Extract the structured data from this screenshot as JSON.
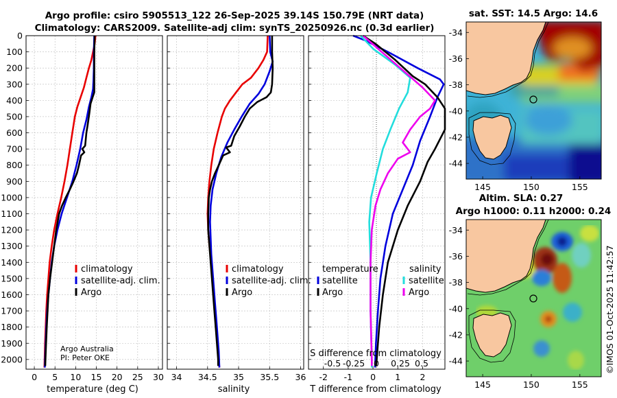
{
  "header": {
    "line1": "Argo profile: csiro 5905513_122 26-Sep-2025 39.14S 150.79E (NRT data)",
    "line2": "Climatology: CARS2009. Satellite-adj clim: synTS_20250926.nc (0.3d earlier)"
  },
  "colors": {
    "climatology": "#e80000",
    "satellite": "#0000dd",
    "argo": "#000000",
    "temp_diff": "#22dddd",
    "sal_diff": "#ee00ee"
  },
  "credit": {
    "line1": "Argo Australia",
    "line2": "PI: Peter OKE"
  },
  "footer": "©IMOS 01-Oct-2025 11:42:57",
  "chart_data": [
    {
      "type": "line",
      "name": "temperature-profile",
      "xlabel": "temperature (deg C)",
      "xlim": [
        -2,
        31
      ],
      "ylim": [
        2060,
        0
      ],
      "xticks": [
        0,
        5,
        10,
        15,
        20,
        25,
        30
      ],
      "yticks": [
        0,
        100,
        200,
        300,
        400,
        500,
        600,
        700,
        800,
        900,
        1000,
        1100,
        1200,
        1300,
        1400,
        1500,
        1600,
        1700,
        1800,
        1900,
        2000
      ],
      "legend": [
        "climatology",
        "satellite-adj. clim.",
        "Argo"
      ],
      "series": [
        {
          "name": "climatology",
          "color": "#e80000",
          "points": [
            [
              14.8,
              0
            ],
            [
              14.6,
              50
            ],
            [
              14.2,
              100
            ],
            [
              13.8,
              150
            ],
            [
              13.2,
              200
            ],
            [
              12.6,
              260
            ],
            [
              12,
              320
            ],
            [
              11.2,
              380
            ],
            [
              10.4,
              440
            ],
            [
              9.8,
              500
            ],
            [
              9.2,
              600
            ],
            [
              8.6,
              700
            ],
            [
              8,
              800
            ],
            [
              7.3,
              900
            ],
            [
              6.5,
              1000
            ],
            [
              5.6,
              1100
            ],
            [
              4.8,
              1200
            ],
            [
              4.2,
              1300
            ],
            [
              3.7,
              1400
            ],
            [
              3.4,
              1500
            ],
            [
              3.1,
              1600
            ],
            [
              2.9,
              1700
            ],
            [
              2.75,
              1800
            ],
            [
              2.6,
              1900
            ],
            [
              2.5,
              2000
            ],
            [
              2.45,
              2050
            ]
          ]
        },
        {
          "name": "satellite-adj. clim.",
          "color": "#0000dd",
          "points": [
            [
              14.5,
              0
            ],
            [
              14.4,
              100
            ],
            [
              14.4,
              200
            ],
            [
              14.3,
              280
            ],
            [
              14.2,
              330
            ],
            [
              13.8,
              380
            ],
            [
              13.2,
              440
            ],
            [
              12.6,
              520
            ],
            [
              11.8,
              600
            ],
            [
              11.1,
              700
            ],
            [
              10.2,
              800
            ],
            [
              9.2,
              900
            ],
            [
              7.9,
              1000
            ],
            [
              6.6,
              1100
            ],
            [
              5.6,
              1200
            ],
            [
              4.8,
              1300
            ],
            [
              4.2,
              1400
            ],
            [
              3.8,
              1500
            ],
            [
              3.4,
              1600
            ],
            [
              3.1,
              1700
            ],
            [
              2.9,
              1800
            ],
            [
              2.75,
              1900
            ],
            [
              2.6,
              2000
            ],
            [
              2.55,
              2050
            ]
          ]
        },
        {
          "name": "Argo",
          "color": "#000000",
          "points": [
            [
              14.6,
              0
            ],
            [
              14.5,
              100
            ],
            [
              14.5,
              200
            ],
            [
              14.5,
              300
            ],
            [
              14.5,
              350
            ],
            [
              14.1,
              380
            ],
            [
              13.6,
              420
            ],
            [
              13.3,
              480
            ],
            [
              12.9,
              550
            ],
            [
              12.6,
              600
            ],
            [
              12.3,
              680
            ],
            [
              11.6,
              700
            ],
            [
              12.1,
              720
            ],
            [
              11.3,
              740
            ],
            [
              10.8,
              800
            ],
            [
              10.3,
              850
            ],
            [
              9.5,
              900
            ],
            [
              8.6,
              950
            ],
            [
              7.6,
              1000
            ],
            [
              6.7,
              1050
            ],
            [
              6.0,
              1100
            ],
            [
              5.3,
              1200
            ],
            [
              4.8,
              1300
            ],
            [
              4.3,
              1400
            ],
            [
              3.8,
              1500
            ],
            [
              3.4,
              1600
            ],
            [
              3.2,
              1700
            ],
            [
              3.0,
              1800
            ],
            [
              2.85,
              1900
            ],
            [
              2.7,
              2000
            ],
            [
              2.65,
              2040
            ]
          ]
        }
      ]
    },
    {
      "type": "line",
      "name": "salinity-profile",
      "xlabel": "salinity",
      "xlim": [
        33.85,
        36.05
      ],
      "ylim": [
        2060,
        0
      ],
      "xticks": [
        34,
        34.5,
        35,
        35.5,
        36
      ],
      "legend": [
        "climatology",
        "satellite-adj. clim.",
        "Argo"
      ],
      "series": [
        {
          "name": "climatology",
          "color": "#e80000",
          "points": [
            [
              35.47,
              0
            ],
            [
              35.46,
              100
            ],
            [
              35.4,
              150
            ],
            [
              35.32,
              200
            ],
            [
              35.2,
              260
            ],
            [
              35.06,
              300
            ],
            [
              34.96,
              350
            ],
            [
              34.86,
              400
            ],
            [
              34.78,
              450
            ],
            [
              34.73,
              500
            ],
            [
              34.66,
              600
            ],
            [
              34.6,
              700
            ],
            [
              34.56,
              800
            ],
            [
              34.53,
              900
            ],
            [
              34.51,
              1000
            ],
            [
              34.5,
              1100
            ],
            [
              34.51,
              1200
            ],
            [
              34.53,
              1300
            ],
            [
              34.56,
              1400
            ],
            [
              34.58,
              1500
            ],
            [
              34.6,
              1600
            ],
            [
              34.62,
              1700
            ],
            [
              34.64,
              1800
            ],
            [
              34.66,
              1900
            ],
            [
              34.68,
              2000
            ],
            [
              34.69,
              2050
            ]
          ]
        },
        {
          "name": "satellite-adj. clim.",
          "color": "#0000dd",
          "points": [
            [
              35.5,
              0
            ],
            [
              35.51,
              100
            ],
            [
              35.55,
              160
            ],
            [
              35.5,
              220
            ],
            [
              35.42,
              300
            ],
            [
              35.32,
              360
            ],
            [
              35.18,
              420
            ],
            [
              35.05,
              500
            ],
            [
              34.93,
              580
            ],
            [
              34.82,
              660
            ],
            [
              34.72,
              750
            ],
            [
              34.64,
              850
            ],
            [
              34.58,
              950
            ],
            [
              34.55,
              1050
            ],
            [
              34.54,
              1150
            ],
            [
              34.55,
              1250
            ],
            [
              34.56,
              1350
            ],
            [
              34.58,
              1450
            ],
            [
              34.6,
              1550
            ],
            [
              34.62,
              1650
            ],
            [
              34.64,
              1750
            ],
            [
              34.66,
              1850
            ],
            [
              34.68,
              1950
            ],
            [
              34.69,
              2050
            ]
          ]
        },
        {
          "name": "Argo",
          "color": "#000000",
          "points": [
            [
              35.54,
              0
            ],
            [
              35.54,
              100
            ],
            [
              35.55,
              200
            ],
            [
              35.54,
              300
            ],
            [
              35.52,
              350
            ],
            [
              35.45,
              380
            ],
            [
              35.3,
              410
            ],
            [
              35.18,
              450
            ],
            [
              35.1,
              500
            ],
            [
              35.02,
              560
            ],
            [
              34.93,
              620
            ],
            [
              34.88,
              680
            ],
            [
              34.8,
              690
            ],
            [
              34.86,
              720
            ],
            [
              34.75,
              740
            ],
            [
              34.68,
              800
            ],
            [
              34.62,
              850
            ],
            [
              34.57,
              900
            ],
            [
              34.54,
              950
            ],
            [
              34.52,
              1000
            ],
            [
              34.51,
              1100
            ],
            [
              34.51,
              1200
            ],
            [
              34.53,
              1300
            ],
            [
              34.55,
              1400
            ],
            [
              34.57,
              1500
            ],
            [
              34.59,
              1600
            ],
            [
              34.61,
              1700
            ],
            [
              34.63,
              1800
            ],
            [
              34.65,
              1900
            ],
            [
              34.67,
              2000
            ],
            [
              34.67,
              2040
            ]
          ]
        }
      ]
    },
    {
      "type": "line",
      "name": "difference-profile",
      "xlabel": "T difference from climatology",
      "xlabel_top": "S difference from climatology",
      "xlim": [
        -2.6,
        2.9
      ],
      "ylim": [
        2060,
        0
      ],
      "xticks": [
        -2,
        -1,
        0,
        1,
        2
      ],
      "s_ticks": [
        "-0.5",
        "-0.25",
        "0",
        "0.25",
        "0.5"
      ],
      "legend_temperature_title": "temperature",
      "legend_salinity_title": "salinity",
      "legend_satellite": "satellite",
      "legend_argo": "Argo",
      "series": [
        {
          "name": "T satellite",
          "color": "#0000dd",
          "points": [
            [
              -0.8,
              0
            ],
            [
              -0.3,
              30
            ],
            [
              0.6,
              100
            ],
            [
              1.8,
              200
            ],
            [
              2.7,
              270
            ],
            [
              2.85,
              300
            ],
            [
              2.6,
              380
            ],
            [
              2.3,
              500
            ],
            [
              1.9,
              650
            ],
            [
              1.6,
              800
            ],
            [
              1.2,
              950
            ],
            [
              0.8,
              1100
            ],
            [
              0.5,
              1300
            ],
            [
              0.3,
              1500
            ],
            [
              0.2,
              1700
            ],
            [
              0.12,
              1900
            ],
            [
              0.08,
              2050
            ]
          ]
        },
        {
          "name": "T Argo",
          "color": "#000000",
          "points": [
            [
              -0.4,
              0
            ],
            [
              0.1,
              50
            ],
            [
              0.9,
              150
            ],
            [
              1.6,
              250
            ],
            [
              2.1,
              300
            ],
            [
              2.6,
              380
            ],
            [
              2.9,
              450
            ],
            [
              2.9,
              580
            ],
            [
              2.5,
              700
            ],
            [
              2.2,
              780
            ],
            [
              1.9,
              900
            ],
            [
              1.4,
              1050
            ],
            [
              1.0,
              1200
            ],
            [
              0.6,
              1400
            ],
            [
              0.4,
              1600
            ],
            [
              0.25,
              1800
            ],
            [
              0.15,
              2000
            ],
            [
              0.12,
              2040
            ]
          ]
        },
        {
          "name": "S satellite",
          "color": "#22dddd",
          "points": [
            [
              -0.5,
              0
            ],
            [
              0,
              80
            ],
            [
              0.9,
              180
            ],
            [
              1.5,
              260
            ],
            [
              1.4,
              350
            ],
            [
              1.05,
              450
            ],
            [
              0.7,
              580
            ],
            [
              0.4,
              700
            ],
            [
              0.15,
              850
            ],
            [
              -0.08,
              1000
            ],
            [
              -0.15,
              1150
            ],
            [
              -0.1,
              1400
            ],
            [
              -0.1,
              1700
            ],
            [
              -0.05,
              2000
            ],
            [
              -0.05,
              2050
            ]
          ]
        },
        {
          "name": "S Argo",
          "color": "#ee00ee",
          "points": [
            [
              -0.4,
              0
            ],
            [
              0.2,
              80
            ],
            [
              1.1,
              200
            ],
            [
              2.0,
              320
            ],
            [
              2.5,
              400
            ],
            [
              2.3,
              450
            ],
            [
              1.9,
              500
            ],
            [
              1.5,
              580
            ],
            [
              1.2,
              660
            ],
            [
              1.5,
              720
            ],
            [
              1.0,
              760
            ],
            [
              0.6,
              850
            ],
            [
              0.3,
              950
            ],
            [
              0.1,
              1050
            ],
            [
              -0.05,
              1200
            ],
            [
              -0.1,
              1400
            ],
            [
              -0.1,
              1700
            ],
            [
              -0.05,
              2000
            ],
            [
              -0.05,
              2040
            ]
          ]
        }
      ]
    },
    {
      "type": "heatmap",
      "name": "sst-map",
      "title": "sat. SST: 14.5 Argo: 14.6",
      "xticks": [
        145,
        150,
        155
      ],
      "yticks": [
        -34,
        -36,
        -38,
        -40,
        -42,
        -44
      ],
      "xlim": [
        143.3,
        157.2
      ],
      "ylim": [
        -45.2,
        -33.2
      ],
      "marker": {
        "lon": 150.79,
        "lat": -39.14
      }
    },
    {
      "type": "heatmap",
      "name": "sla-map",
      "title_line1": "Altim. SLA: 0.27",
      "title_line2": "Argo h1000: 0.11 h2000: 0.24",
      "xticks": [
        145,
        150,
        155
      ],
      "yticks": [
        -34,
        -36,
        -38,
        -40,
        -42,
        -44
      ],
      "xlim": [
        143.3,
        157.2
      ],
      "ylim": [
        -45.2,
        -33.2
      ],
      "marker": {
        "lon": 150.79,
        "lat": -39.14
      }
    }
  ]
}
